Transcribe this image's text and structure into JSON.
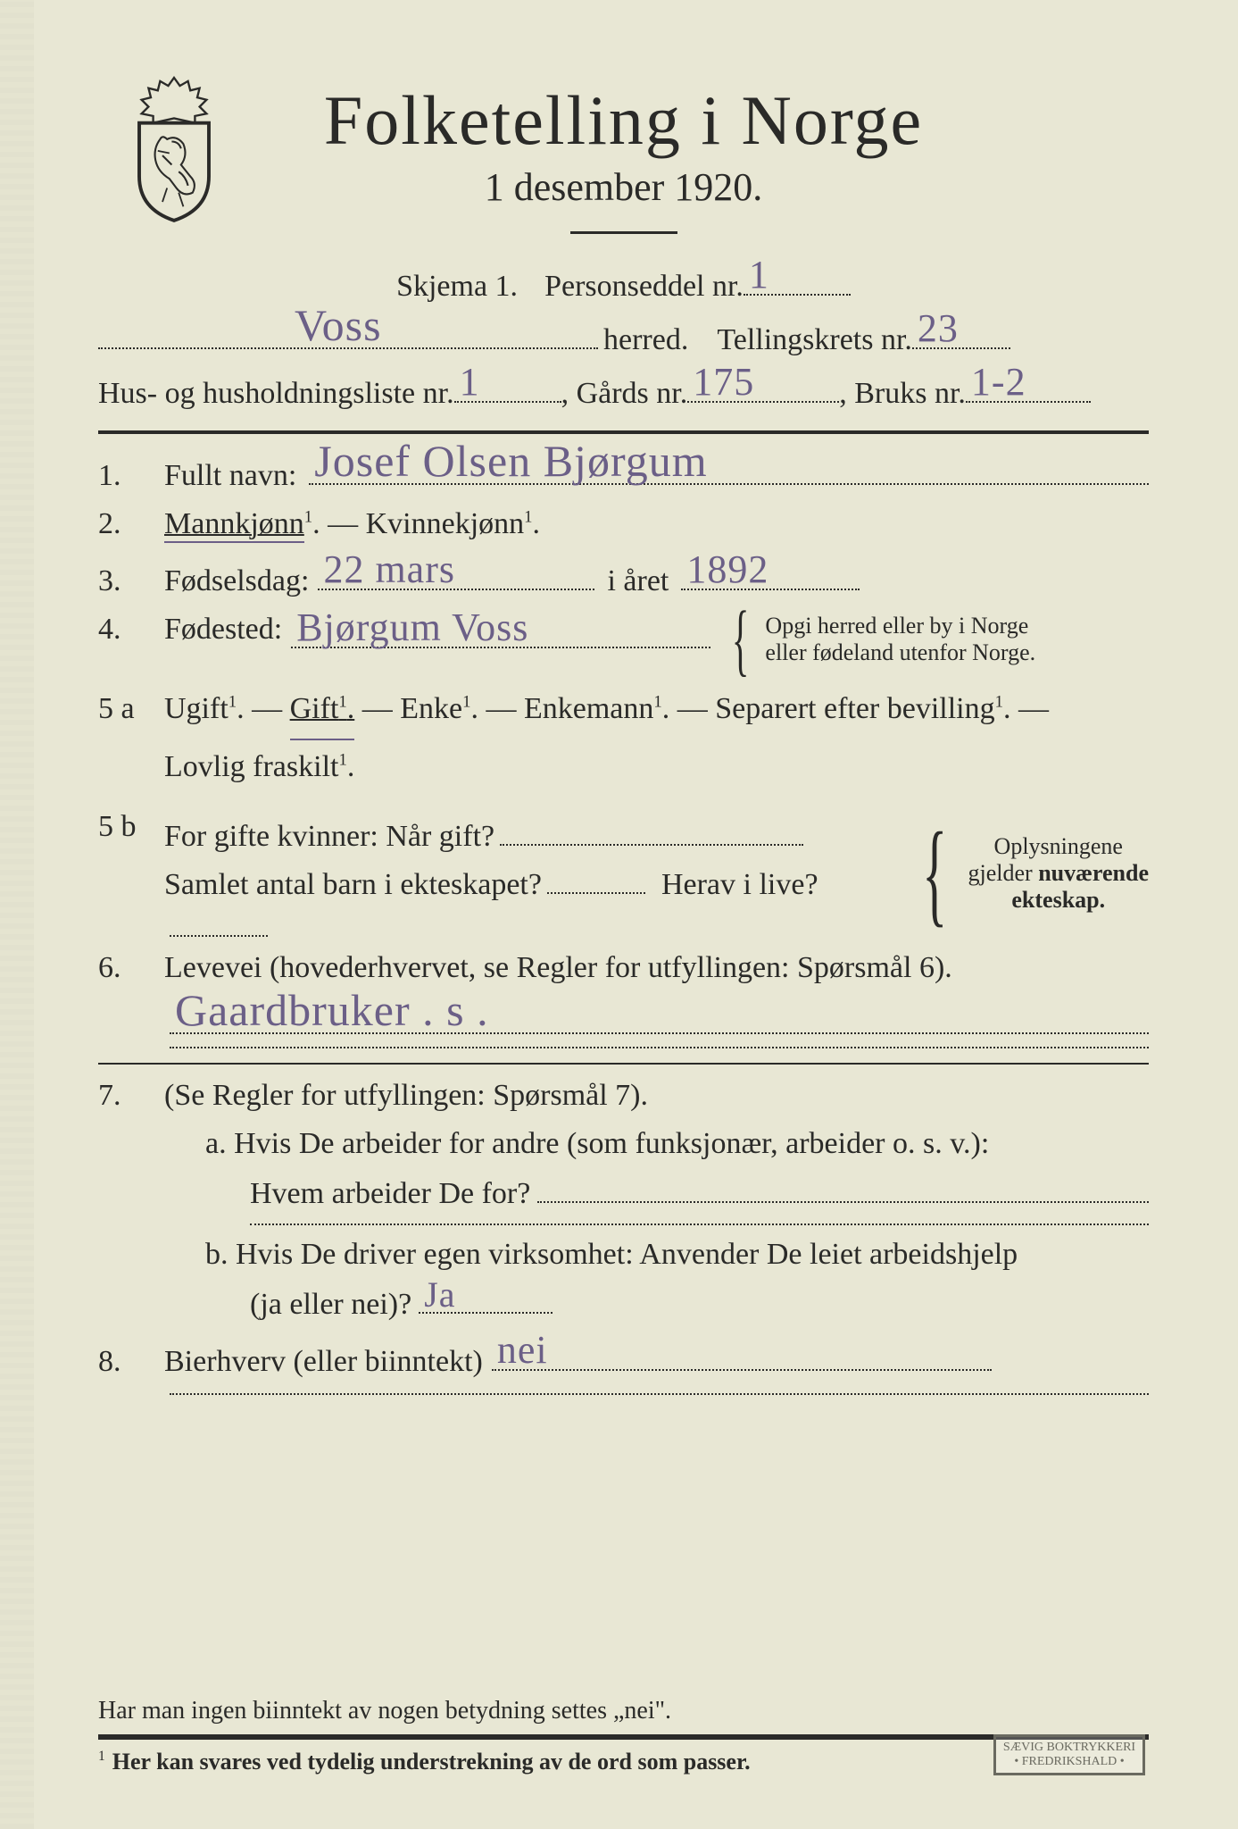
{
  "header": {
    "title1": "Folketelling  i  Norge",
    "title2": "1 desember 1920."
  },
  "meta": {
    "schema_label": "Skjema 1.",
    "personseddel_label": "Personseddel nr.",
    "personseddel_nr": "1",
    "herred_name": "Voss",
    "herred_label": "herred.",
    "tellingskrets_label": "Tellingskrets nr.",
    "tellingskrets_nr": "23",
    "hus_label": "Hus- og husholdningsliste nr.",
    "hus_nr": "1",
    "gaards_label": ",  Gårds nr.",
    "gaards_nr": "175",
    "bruks_label": ",  Bruks nr.",
    "bruks_nr": "1-2"
  },
  "q1": {
    "num": "1.",
    "label": "Fullt navn:",
    "value": "Josef  Olsen  Bjørgum"
  },
  "q2": {
    "num": "2.",
    "mann": "Mannkjønn",
    "dash": " — ",
    "kvinne": "Kvinnekjønn",
    "sup": "1",
    "period": "."
  },
  "q3": {
    "num": "3.",
    "label": "Fødselsdag:",
    "day": "22  mars",
    "mid": "i året",
    "year": "1892"
  },
  "q4": {
    "num": "4.",
    "label": "Fødested:",
    "value": "Bjørgum   Voss",
    "note1": "Opgi herred eller by i Norge",
    "note2": "eller fødeland utenfor Norge."
  },
  "q5a": {
    "num": "5 a",
    "ugift": "Ugift",
    "gift": "Gift",
    "enke": "Enke",
    "enkemann": "Enkemann",
    "separert": "Separert efter bevilling",
    "fraskilt": "Lovlig fraskilt",
    "sup": "1",
    "dash": " — ",
    "period": "."
  },
  "q5b": {
    "num": "5 b",
    "l1": "For gifte kvinner:  Når gift?",
    "l2a": "Samlet antal barn i ekteskapet?",
    "l2b": "Herav i live?",
    "note1": "Oplysningene",
    "note2": "gjelder nuværende",
    "note3": "ekteskap."
  },
  "q6": {
    "num": "6.",
    "label": "Levevei (hovederhvervet, se Regler for utfyllingen:  Spørsmål 6).",
    "value": "Gaardbruker   . s ."
  },
  "q7": {
    "num": "7.",
    "head": "(Se Regler for utfyllingen:  Spørsmål 7).",
    "a1": "a.   Hvis De arbeider for andre (som funksjonær, arbeider o. s. v.):",
    "a2": "Hvem arbeider De for?",
    "b1": "b.   Hvis De driver egen virksomhet:  Anvender De leiet arbeidshjelp",
    "b2": "(ja eller nei)?",
    "b_value": "Ja"
  },
  "q8": {
    "num": "8.",
    "label": "Bierhverv (eller biinntekt)",
    "value": "nei"
  },
  "footer": {
    "line1": "Har man ingen biinntekt av nogen betydning settes „nei\".",
    "line2_lead": "1",
    "line2": "Her kan svares ved tydelig understrekning av de ord som passer.",
    "stamp1": "SÆVIG BOKTRYKKERI",
    "stamp2": "• FREDRIKSHALD •"
  },
  "colors": {
    "paper": "#e8e7d4",
    "ink": "#2a2a28",
    "handwriting": "#6b5f87"
  }
}
